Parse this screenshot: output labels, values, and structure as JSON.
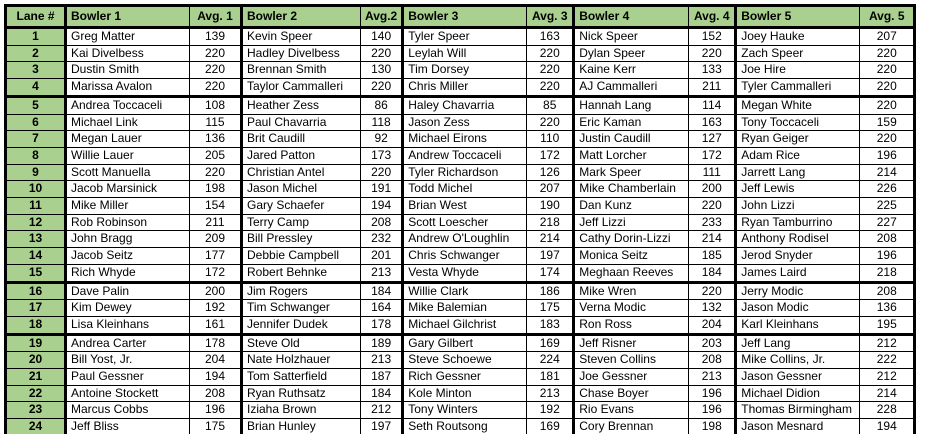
{
  "table": {
    "headers": [
      "Lane #",
      "Bowler 1",
      "Avg. 1",
      "Bowler 2",
      "Avg.2",
      "Bowler 3",
      "Avg. 3",
      "Bowler 4",
      "Avg. 4",
      "Bowler 5",
      "Avg. 5"
    ],
    "rows": [
      [
        "1",
        "Greg Matter",
        "139",
        "Kevin Speer",
        "140",
        "Tyler Speer",
        "163",
        "Nick Speer",
        "152",
        "Joey Hauke",
        "207"
      ],
      [
        "2",
        "Kai Divelbess",
        "220",
        "Hadley Divelbess",
        "220",
        "Leylah Will",
        "220",
        "Dylan Speer",
        "220",
        "Zach Speer",
        "220"
      ],
      [
        "3",
        "Dustin Smith",
        "220",
        "Brennan Smith",
        "130",
        "Tim Dorsey",
        "220",
        "Kaine Kerr",
        "133",
        "Joe Hire",
        "220"
      ],
      [
        "4",
        "Marissa Avalon",
        "220",
        "Taylor Cammalleri",
        "220",
        "Chris Miller",
        "220",
        "AJ Cammalleri",
        "211",
        "Tyler Cammalleri",
        "220"
      ],
      [
        "5",
        "Andrea Toccaceli",
        "108",
        "Heather Zess",
        "86",
        "Haley Chavarria",
        "85",
        "Hannah Lang",
        "114",
        "Megan White",
        "220"
      ],
      [
        "6",
        "Michael Link",
        "115",
        "Paul Chavarria",
        "118",
        "Jason Zess",
        "220",
        "Eric Kaman",
        "163",
        "Tony Toccaceli",
        "159"
      ],
      [
        "7",
        "Megan Lauer",
        "136",
        "Brit Caudill",
        "92",
        "Michael Eirons",
        "110",
        "Justin Caudill",
        "127",
        "Ryan Geiger",
        "220"
      ],
      [
        "8",
        "Willie Lauer",
        "205",
        "Jared Patton",
        "173",
        "Andrew Toccaceli",
        "172",
        "Matt Lorcher",
        "172",
        "Adam Rice",
        "196"
      ],
      [
        "9",
        "Scott Manuella",
        "220",
        "Christian Antel",
        "220",
        "Tyler Richardson",
        "126",
        "Mark Speer",
        "111",
        "Jarrett Lang",
        "214"
      ],
      [
        "10",
        "Jacob Marsinick",
        "198",
        "Jason Michel",
        "191",
        "Todd Michel",
        "207",
        "Mike Chamberlain",
        "200",
        "Jeff Lewis",
        "226"
      ],
      [
        "11",
        "Mike Miller",
        "154",
        "Gary Schaefer",
        "194",
        "Brian West",
        "190",
        "Dan Kunz",
        "220",
        "John Lizzi",
        "225"
      ],
      [
        "12",
        "Rob Robinson",
        "211",
        "Terry Camp",
        "208",
        "Scott Loescher",
        "218",
        "Jeff Lizzi",
        "233",
        "Ryan Tamburrino",
        "227"
      ],
      [
        "13",
        "John Bragg",
        "209",
        "Bill Pressley",
        "232",
        "Andrew O'Loughlin",
        "214",
        "Cathy Dorin-Lizzi",
        "214",
        "Anthony Rodisel",
        "208"
      ],
      [
        "14",
        "Jacob Seitz",
        "177",
        "Debbie Campbell",
        "201",
        "Chris Schwanger",
        "197",
        "Monica Seitz",
        "185",
        "Jerod Snyder",
        "196"
      ],
      [
        "15",
        "Rich Whyde",
        "172",
        "Robert Behnke",
        "213",
        "Vesta Whyde",
        "174",
        "Meghaan Reeves",
        "184",
        "James Laird",
        "218"
      ],
      [
        "16",
        "Dave Palin",
        "200",
        "Jim Rogers",
        "184",
        "Willie Clark",
        "186",
        "Mike Wren",
        "220",
        "Jerry Modic",
        "208"
      ],
      [
        "17",
        "Kim Dewey",
        "192",
        "Tim Schwanger",
        "164",
        "Mike Balemian",
        "175",
        "Verna Modic",
        "132",
        "Jason Modic",
        "136"
      ],
      [
        "18",
        "Lisa Kleinhans",
        "161",
        "Jennifer Dudek",
        "178",
        "Michael Gilchrist",
        "183",
        "Ron Ross",
        "204",
        "Karl Kleinhans",
        "195"
      ],
      [
        "19",
        "Andrea Carter",
        "178",
        "Steve Old",
        "189",
        "Gary Gilbert",
        "169",
        "Jeff Risner",
        "203",
        "Jeff Lang",
        "212"
      ],
      [
        "20",
        "Bill Yost, Jr.",
        "204",
        "Nate Holzhauer",
        "213",
        "Steve Schoewe",
        "224",
        "Steven Collins",
        "208",
        "Mike Collins, Jr.",
        "222"
      ],
      [
        "21",
        "Paul Gessner",
        "194",
        "Tom Satterfield",
        "187",
        "Rich Gessner",
        "181",
        "Joe Gessner",
        "213",
        "Jason Gessner",
        "212"
      ],
      [
        "22",
        "Antoine Stockett",
        "208",
        "Ryan Ruthsatz",
        "184",
        "Kole Minton",
        "213",
        "Chase Boyer",
        "196",
        "Michael Didion",
        "214"
      ],
      [
        "23",
        "Marcus Cobbs",
        "196",
        "Iziaha Brown",
        "212",
        "Tony Winters",
        "192",
        "Rio Evans",
        "196",
        "Thomas Birmingham",
        "228"
      ],
      [
        "24",
        "Jeff Bliss",
        "175",
        "Brian Hunley",
        "197",
        "Seth Routsong",
        "169",
        "Cory Brennan",
        "198",
        "Jason Mesnard",
        "194"
      ]
    ],
    "group_start_lanes": [
      5,
      16,
      19
    ],
    "colors": {
      "header_bg": "#A9D08E",
      "lane_bg": "#A9D08E",
      "cell_bg": "#FFFFFF",
      "border": "#000000",
      "text": "#000000"
    }
  }
}
